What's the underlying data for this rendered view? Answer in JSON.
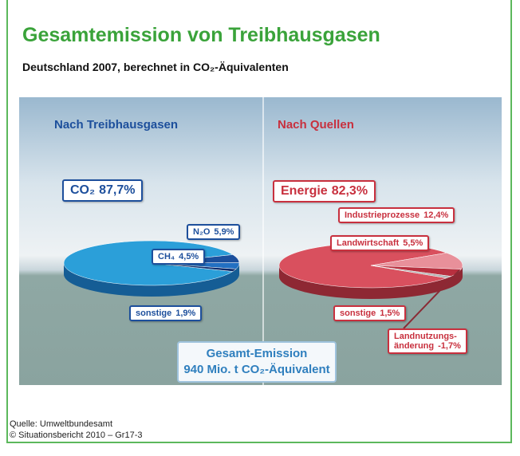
{
  "header": {
    "title": "Gesamtemission von Treibhausgasen",
    "subtitle": "Deutschland 2007, berechnet in CO₂-Äquivalenten"
  },
  "chart_data": [
    {
      "type": "pie",
      "title": "Nach Treibhausgasen",
      "categories": [
        "CO₂",
        "N₂O",
        "CH₄",
        "sonstige"
      ],
      "values": [
        87.7,
        5.9,
        4.5,
        1.9
      ],
      "value_labels": [
        "87,7%",
        "5,9%",
        "4,5%",
        "1,9%"
      ],
      "colors": [
        "#2b9fd9",
        "#1b4f9c",
        "#2270c2",
        "#0e2c6c"
      ],
      "text_color": "#1d4f9c"
    },
    {
      "type": "pie",
      "title": "Nach Quellen",
      "categories": [
        "Energie",
        "Industrieprozesse",
        "Landwirtschaft",
        "sonstige",
        "Landnutzungs-änderung"
      ],
      "values": [
        82.3,
        12.4,
        5.5,
        1.5,
        -1.7
      ],
      "value_labels": [
        "82,3%",
        "12,4%",
        "5,5%",
        "1,5%",
        "-1,7%"
      ],
      "colors": [
        "#d9505e",
        "#e8909a",
        "#b8303f",
        "#b4b4b4",
        "#8a2b35"
      ],
      "text_color": "#c8303e"
    }
  ],
  "total": {
    "line1": "Gesamt-Emission",
    "line2": "940 Mio. t CO₂-Äquivalent"
  },
  "footer": {
    "source": "Quelle: Umweltbundesamt",
    "copyright": "© Situationsbericht 2010 – Gr17-3"
  }
}
